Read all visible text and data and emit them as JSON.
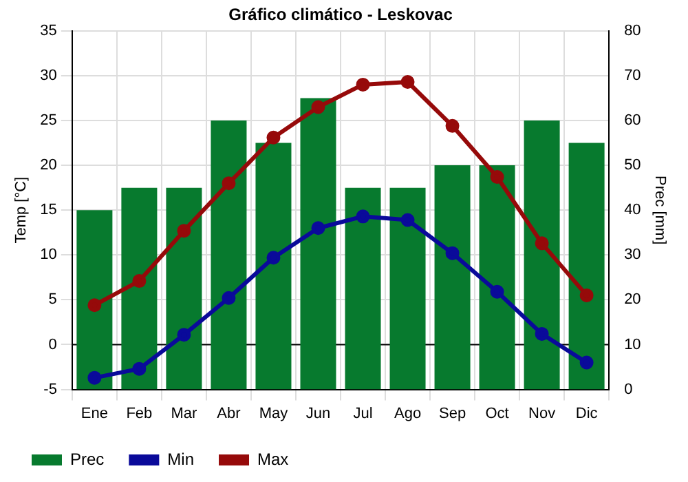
{
  "chart_data": {
    "type": "bar",
    "title": "Gráfico climático - Leskovac",
    "ylabel": "Temp [°C]",
    "y2label": "Prec [mm]",
    "categories": [
      "Ene",
      "Feb",
      "Mar",
      "Abr",
      "May",
      "Jun",
      "Jul",
      "Ago",
      "Sep",
      "Oct",
      "Nov",
      "Dic"
    ],
    "series": [
      {
        "name": "Prec",
        "axis": "y2",
        "color": "#077a2e",
        "values": [
          40,
          45,
          45,
          60,
          55,
          65,
          45,
          45,
          50,
          50,
          60,
          55
        ]
      },
      {
        "name": "Min",
        "type": "line",
        "color": "#0a0a9a",
        "values": [
          -3.7,
          -2.7,
          1.1,
          5.2,
          9.7,
          13,
          14.3,
          13.9,
          10.2,
          5.9,
          1.2,
          -2.0
        ]
      },
      {
        "name": "Max",
        "type": "line",
        "color": "#960a0a",
        "values": [
          4.4,
          7.1,
          12.7,
          18,
          23.1,
          26.5,
          29,
          29.3,
          24.4,
          18.7,
          11.3,
          5.5
        ]
      }
    ],
    "ylim": [
      -5,
      35
    ],
    "yticks": [
      -5,
      0,
      5,
      10,
      15,
      20,
      25,
      30,
      35
    ],
    "y2lim": [
      0,
      80
    ],
    "y2ticks": [
      0,
      10,
      20,
      30,
      40,
      50,
      60,
      70,
      80
    ],
    "ref_lines": [
      {
        "axis": "y",
        "value": 0,
        "color": "#000000"
      }
    ],
    "grid": true,
    "legend": "bottom left",
    "marker": "circle",
    "line_style": "solid"
  }
}
